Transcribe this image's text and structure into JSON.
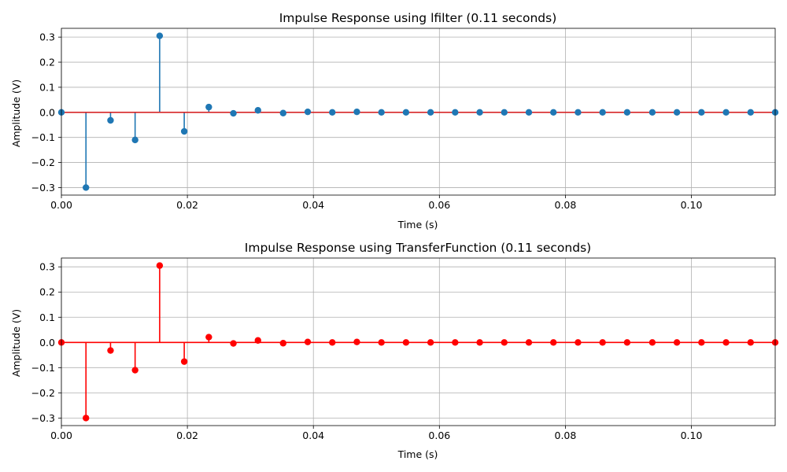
{
  "chart_data": [
    {
      "type": "stem",
      "title": "Impulse Response using lfilter (0.11 seconds)",
      "xlabel": "Time (s)",
      "ylabel": "Amplitude (V)",
      "xlim": [
        0,
        0.1133
      ],
      "ylim": [
        -0.33,
        0.335
      ],
      "xticks": [
        "0.00",
        "0.02",
        "0.04",
        "0.06",
        "0.08",
        "0.10"
      ],
      "yticks": [
        "−0.3",
        "−0.2",
        "−0.1",
        "0.0",
        "0.1",
        "0.2",
        "0.3"
      ],
      "grid": true,
      "series": [
        {
          "color": "#1f77b4",
          "baseline_color": "#d62728",
          "x": [
            0,
            0.0039,
            0.0078,
            0.0117,
            0.0156,
            0.0195,
            0.0234,
            0.0273,
            0.0312,
            0.0352,
            0.0391,
            0.043,
            0.0469,
            0.0508,
            0.0547,
            0.0586,
            0.0625,
            0.0664,
            0.0703,
            0.0742,
            0.0781,
            0.082,
            0.0859,
            0.0898,
            0.0938,
            0.0977,
            0.1016,
            0.1055,
            0.1094,
            0.1133
          ],
          "y": [
            0,
            -0.3,
            -0.032,
            -0.11,
            0.305,
            -0.076,
            0.021,
            -0.004,
            0.008,
            -0.003,
            0.002,
            0.0,
            0.002,
            0.0,
            0.0,
            0.0,
            0.0,
            0.0,
            0.0,
            0.0,
            0.0,
            0.0,
            0.0,
            0.0,
            0.0,
            0.0,
            0.0,
            0.0,
            0.0,
            0.0
          ]
        }
      ]
    },
    {
      "type": "stem",
      "title": "Impulse Response using TransferFunction (0.11 seconds)",
      "xlabel": "Time (s)",
      "ylabel": "Amplitude (V)",
      "xlim": [
        0,
        0.1133
      ],
      "ylim": [
        -0.33,
        0.335
      ],
      "xticks": [
        "0.00",
        "0.02",
        "0.04",
        "0.06",
        "0.08",
        "0.10"
      ],
      "yticks": [
        "−0.3",
        "−0.2",
        "−0.1",
        "0.0",
        "0.1",
        "0.2",
        "0.3"
      ],
      "grid": true,
      "series": [
        {
          "color": "#ff0000",
          "baseline_color": "#ff0000",
          "x": [
            0,
            0.0039,
            0.0078,
            0.0117,
            0.0156,
            0.0195,
            0.0234,
            0.0273,
            0.0312,
            0.0352,
            0.0391,
            0.043,
            0.0469,
            0.0508,
            0.0547,
            0.0586,
            0.0625,
            0.0664,
            0.0703,
            0.0742,
            0.0781,
            0.082,
            0.0859,
            0.0898,
            0.0938,
            0.0977,
            0.1016,
            0.1055,
            0.1094,
            0.1133
          ],
          "y": [
            0,
            -0.3,
            -0.032,
            -0.11,
            0.305,
            -0.076,
            0.021,
            -0.004,
            0.008,
            -0.003,
            0.002,
            0.0,
            0.002,
            0.0,
            0.0,
            0.0,
            0.0,
            0.0,
            0.0,
            0.0,
            0.0,
            0.0,
            0.0,
            0.0,
            0.0,
            0.0,
            0.0,
            0.0,
            0.0,
            0.0
          ]
        }
      ]
    }
  ]
}
